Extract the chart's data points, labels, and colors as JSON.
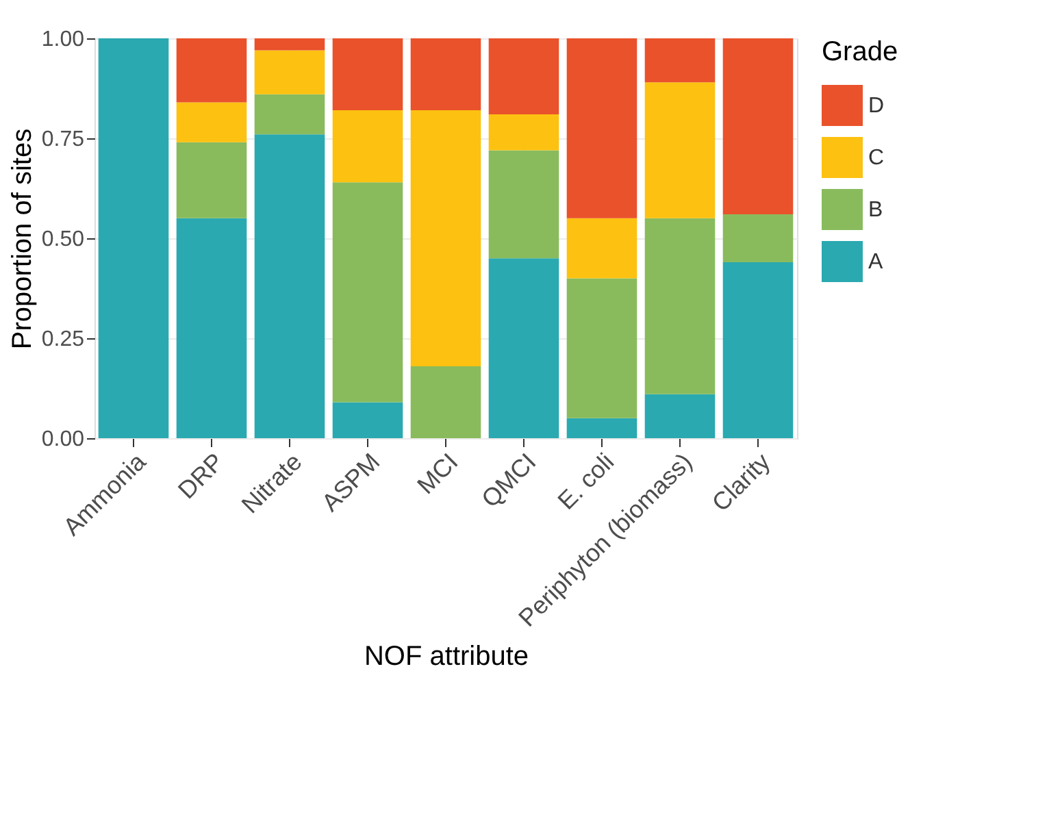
{
  "chart_data": {
    "type": "bar",
    "stacked": true,
    "xlabel": "NOF attribute",
    "ylabel": "Proportion of sites",
    "legend_title": "Grade",
    "legend": "right",
    "grid": true,
    "categories": [
      "Ammonia",
      "DRP",
      "Nitrate",
      "ASPM",
      "MCI",
      "QMCI",
      "E. coli",
      "Periphyton (biomass)",
      "Clarity"
    ],
    "ylim": [
      0,
      1
    ],
    "yticks": [
      {
        "value": 0,
        "label": "0.00"
      },
      {
        "value": 0.25,
        "label": "0.25"
      },
      {
        "value": 0.5,
        "label": "0.50"
      },
      {
        "value": 0.75,
        "label": "0.75"
      },
      {
        "value": 1,
        "label": "1.00"
      }
    ],
    "series": [
      {
        "name": "A",
        "color": "#2aa9b0",
        "values": [
          1.0,
          0.55,
          0.76,
          0.09,
          0.0,
          0.45,
          0.05,
          0.11,
          0.44
        ]
      },
      {
        "name": "B",
        "color": "#89bb5d",
        "values": [
          0.0,
          0.19,
          0.1,
          0.55,
          0.18,
          0.27,
          0.35,
          0.44,
          0.12
        ]
      },
      {
        "name": "C",
        "color": "#fdc111",
        "values": [
          0.0,
          0.1,
          0.11,
          0.18,
          0.64,
          0.09,
          0.15,
          0.34,
          0.0
        ]
      },
      {
        "name": "D",
        "color": "#e9522b",
        "values": [
          0.0,
          0.16,
          0.03,
          0.18,
          0.18,
          0.19,
          0.45,
          0.11,
          0.44
        ]
      }
    ]
  }
}
